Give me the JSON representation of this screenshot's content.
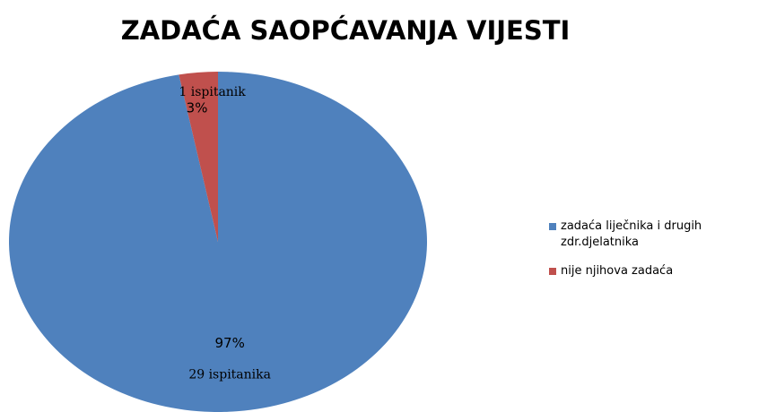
{
  "chart_data": {
    "type": "pie",
    "title": "ZADAĆA SAOPĆAVANJA VIJESTI",
    "categories": [
      "zadaća liječnika i drugih zdr.djelatnika",
      "nije njihova zadaća"
    ],
    "values": [
      97,
      3
    ],
    "value_labels": [
      "97%",
      "3%"
    ],
    "count_labels": [
      "29 ispitanika",
      "1 ispitanik"
    ],
    "colors": [
      "#4f81bd",
      "#c0504d"
    ],
    "legend": "right"
  }
}
